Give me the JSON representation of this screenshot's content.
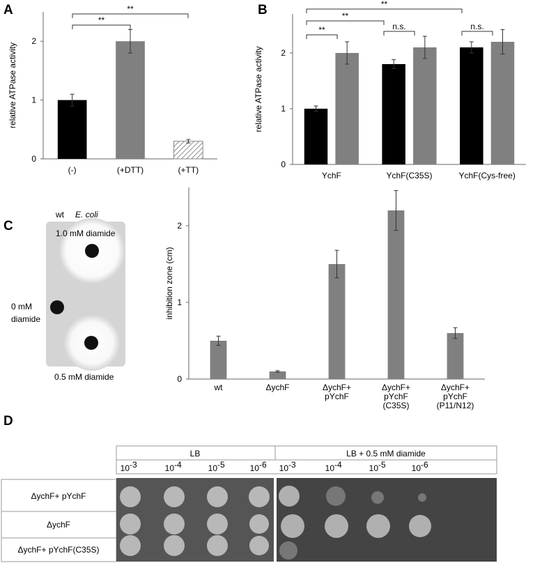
{
  "panels": [
    "A",
    "B",
    "C",
    "D"
  ],
  "chart_data": [
    {
      "type": "bar",
      "ylabel": "relative ATPase activity",
      "categories": [
        "(-)",
        "(+DTT)",
        "(+TT)"
      ],
      "values": [
        1,
        2,
        0.3
      ],
      "errors": [
        0.1,
        0.2,
        0.03
      ],
      "colors": [
        "#000000",
        "#808080",
        "hatched"
      ],
      "ylim": [
        0,
        2.5
      ],
      "yticks": [
        0,
        1,
        2
      ],
      "annotations": [
        "**",
        "**"
      ]
    },
    {
      "type": "grouped-bar",
      "ylabel": "relative ATPase activity",
      "categories": [
        "YchF",
        "YchF(C35S)",
        "YchF(Cys-free)"
      ],
      "series": [
        {
          "color": "#000000",
          "values": [
            1,
            1.8,
            2.1
          ],
          "errors": [
            0.05,
            0.08,
            0.1
          ]
        },
        {
          "color": "#808080",
          "values": [
            2,
            2.1,
            2.2
          ],
          "errors": [
            0.2,
            0.2,
            0.22
          ]
        }
      ],
      "ylim": [
        0,
        2.7
      ],
      "yticks": [
        0,
        1,
        2
      ],
      "annotations": [
        "**",
        "**",
        "**",
        "n.s.",
        "n.s."
      ]
    },
    {
      "type": "bar",
      "ylabel": "inhibition zone (cm)",
      "categories": [
        [
          "wt"
        ],
        [
          "ΔychF"
        ],
        [
          "ΔychF+",
          "pYchF"
        ],
        [
          "ΔychF+",
          "pYchF",
          "(C35S)"
        ],
        [
          "ΔychF+",
          "pYchF",
          "(P11/N12)"
        ]
      ],
      "values": [
        0.5,
        0.1,
        1.5,
        2.2,
        0.6
      ],
      "errors": [
        0.06,
        0.01,
        0.18,
        0.26,
        0.07
      ],
      "colors": [
        "#808080",
        "#808080",
        "#808080",
        "#808080",
        "#808080"
      ],
      "ylim": [
        0,
        2.5
      ],
      "yticks": [
        0,
        1,
        2
      ],
      "annotations": []
    }
  ],
  "plate": {
    "strain": "wt",
    "organism": "E. coli",
    "labels": [
      "1.0 mM diamide",
      "0 mM",
      "diamide",
      "0.5 mM diamide"
    ]
  },
  "spot_assay": {
    "conditions": [
      "LB",
      "LB + 0.5 mM diamide"
    ],
    "dilutions": [
      {
        "base": "10",
        "exp": "-3"
      },
      {
        "base": "10",
        "exp": "-4"
      },
      {
        "base": "10",
        "exp": "-5"
      },
      {
        "base": "10",
        "exp": "-6"
      }
    ],
    "strains": [
      "ΔychF+ pYchF",
      "ΔychF",
      "ΔychF+ pYchF(C35S)"
    ]
  }
}
